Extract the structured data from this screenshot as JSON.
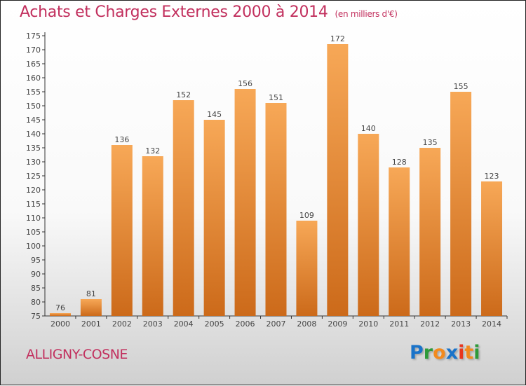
{
  "title": "Achats et Charges Externes 2000 à 2014",
  "subtitle": "(en milliers d'€)",
  "city": "ALLIGNY-COSNE",
  "logo": {
    "letters": [
      "P",
      "r",
      "o",
      "x",
      "i",
      "t",
      "i"
    ],
    "colors": [
      "#1a73c9",
      "#2e9a3a",
      "#f28a1e",
      "#1a73c9",
      "#e8361e",
      "#f28a1e",
      "#2e9a3a"
    ],
    "text": "Proxiti"
  },
  "chart_data": {
    "type": "bar",
    "title": "Achats et Charges Externes 2000 à 2014",
    "subtitle": "(en milliers d'€)",
    "categories": [
      "2000",
      "2001",
      "2002",
      "2003",
      "2004",
      "2005",
      "2006",
      "2007",
      "2008",
      "2009",
      "2010",
      "2011",
      "2012",
      "2013",
      "2014"
    ],
    "values": [
      76,
      81,
      136,
      132,
      152,
      145,
      156,
      151,
      109,
      172,
      140,
      128,
      135,
      155,
      123
    ],
    "ylim": [
      75,
      175
    ],
    "ytick_step": 5,
    "grid": false,
    "bar_color_top": "#f7a857",
    "bar_color_bottom": "#cc6a1a"
  }
}
